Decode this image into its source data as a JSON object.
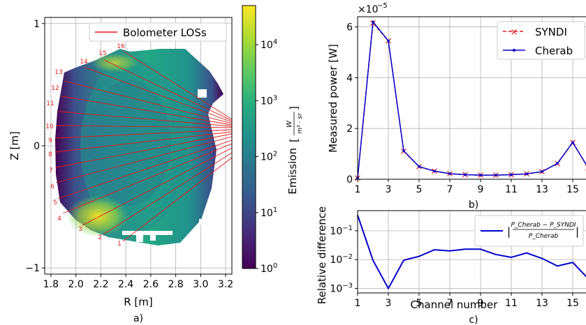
{
  "panel_a": {
    "caption": "a)",
    "legend": "Bolometer LOSs",
    "colorbar_label": "Emission",
    "colorbar_unit_num": "W",
    "colorbar_unit_den": "m³ · sr",
    "colorbar_ticks": [
      {
        "base": "10",
        "exp": "0",
        "v": 0
      },
      {
        "base": "10",
        "exp": "1",
        "v": 1
      },
      {
        "base": "10",
        "exp": "2",
        "v": 2
      },
      {
        "base": "10",
        "exp": "3",
        "v": 3
      },
      {
        "base": "10",
        "exp": "4",
        "v": 4
      }
    ],
    "channel_labels": [
      "1",
      "2",
      "3",
      "4",
      "5",
      "6",
      "7",
      "8",
      "9",
      "10",
      "11",
      "12",
      "13",
      "14",
      "15",
      "16"
    ],
    "los_color": "#e41a1c"
  },
  "chart_data": [
    {
      "type": "heatmap",
      "xlabel": "R [m]",
      "ylabel": "Z [m]",
      "xlim": [
        1.75,
        3.25
      ],
      "ylim": [
        -1.05,
        1.05
      ],
      "xticks": [
        "1.8",
        "2.0",
        "2.2",
        "2.4",
        "2.6",
        "2.8",
        "3.0",
        "3.2"
      ],
      "yticks": [
        "1",
        "0",
        "−1"
      ],
      "colorscale": "viridis",
      "colorscale_log": true,
      "color_range": [
        1,
        50000
      ]
    },
    {
      "type": "line",
      "caption": "b)",
      "ylabel": "Measured power [W]",
      "offset_text": "×10",
      "offset_exp": "−5",
      "xticks": [
        "1",
        "3",
        "5",
        "7",
        "9",
        "11",
        "13",
        "15"
      ],
      "yticks": [
        "0",
        "2",
        "4",
        "6"
      ],
      "xlim": [
        1,
        16
      ],
      "ylim": [
        0,
        6.4
      ],
      "x": [
        1,
        2,
        3,
        4,
        5,
        6,
        7,
        8,
        9,
        10,
        11,
        12,
        13,
        14,
        15,
        16
      ],
      "series": [
        {
          "name": "SYNDI",
          "color": "#e41a1c",
          "style": "dashed-x",
          "values": [
            0.05,
            6.15,
            5.45,
            1.1,
            0.5,
            0.32,
            0.22,
            0.18,
            0.16,
            0.16,
            0.18,
            0.21,
            0.3,
            0.62,
            1.45,
            0.45
          ]
        },
        {
          "name": "Cherab",
          "color": "#0000cc",
          "style": "solid-dot",
          "values": [
            0.05,
            6.2,
            5.45,
            1.12,
            0.5,
            0.32,
            0.22,
            0.18,
            0.16,
            0.16,
            0.18,
            0.21,
            0.3,
            0.62,
            1.45,
            0.45
          ]
        }
      ]
    },
    {
      "type": "line",
      "caption": "c)",
      "xlabel": "Channel number",
      "ylabel": "Relative difference",
      "log_y": true,
      "xticks": [
        "1",
        "3",
        "5",
        "7",
        "9",
        "11",
        "13",
        "15"
      ],
      "yticks": [
        {
          "base": "10",
          "exp": "−1"
        },
        {
          "base": "10",
          "exp": "−2"
        },
        {
          "base": "10",
          "exp": "−3"
        }
      ],
      "xlim": [
        1,
        16
      ],
      "ylim": [
        0.0007,
        0.5
      ],
      "x": [
        1,
        2,
        3,
        4,
        5,
        6,
        7,
        8,
        9,
        10,
        11,
        12,
        13,
        14,
        15,
        16
      ],
      "series": [
        {
          "color": "#0000cc",
          "legend_num": "P_Cherab − P_SYNDI",
          "legend_den": "P_Cherab",
          "values": [
            0.35,
            0.0095,
            0.001,
            0.0095,
            0.013,
            0.022,
            0.02,
            0.023,
            0.023,
            0.015,
            0.012,
            0.017,
            0.011,
            0.006,
            0.008,
            0.0022
          ]
        }
      ]
    }
  ]
}
